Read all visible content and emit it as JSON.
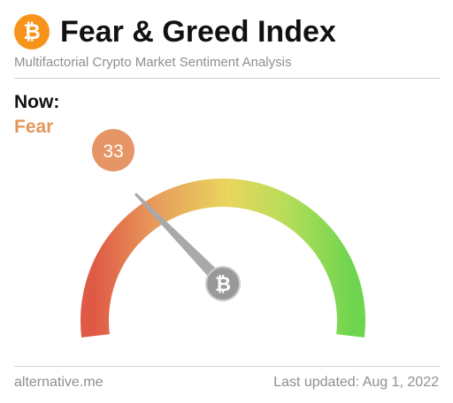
{
  "header": {
    "title": "Fear & Greed Index",
    "subtitle": "Multifactorial Crypto Market Sentiment Analysis",
    "logo_glyph": "₿",
    "logo_icon": "bitcoin-icon"
  },
  "status": {
    "now_label": "Now:",
    "classification": "Fear",
    "value": "33",
    "value_number": 33,
    "scale_min": 0,
    "scale_max": 100
  },
  "gauge": {
    "hub_glyph": "₿",
    "hub_icon": "bitcoin-icon"
  },
  "footer": {
    "source": "alternative.me",
    "last_updated": "Last updated: Aug 1, 2022"
  },
  "colors": {
    "brand_orange": "#f7931a",
    "fear_color": "#e3975a",
    "badge_color": "#e59566",
    "gauge_start": "#df5a45",
    "gauge_mid": "#e9d65d",
    "gauge_end": "#6fd54f",
    "needle": "#a9a9a9"
  }
}
